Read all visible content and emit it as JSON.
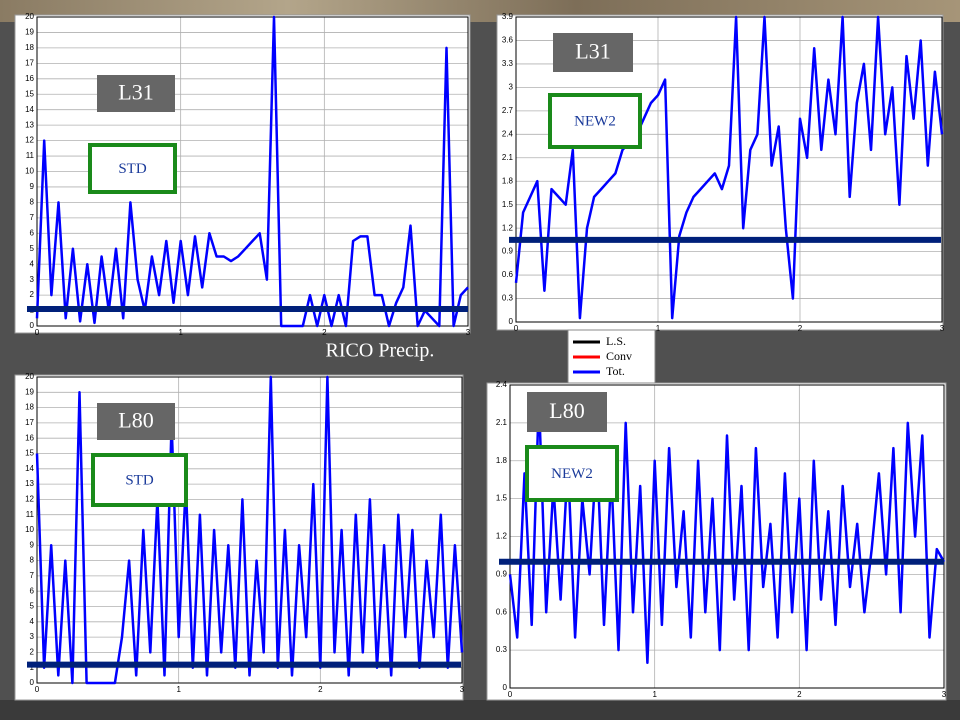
{
  "caption": "RICO Precip.",
  "legend": [
    {
      "name": "L.S.",
      "color": "#000000"
    },
    {
      "name": "Conv",
      "color": "#ff0000"
    },
    {
      "name": "Tot.",
      "color": "#0000ff"
    }
  ],
  "chart_data": [
    {
      "type": "line",
      "labels": [
        "L31",
        "STD"
      ],
      "x": [
        0,
        0.05,
        0.1,
        0.15,
        0.2,
        0.25,
        0.3,
        0.35,
        0.4,
        0.45,
        0.5,
        0.55,
        0.6,
        0.65,
        0.7,
        0.75,
        0.8,
        0.85,
        0.9,
        0.95,
        1,
        1.05,
        1.1,
        1.15,
        1.2,
        1.25,
        1.3,
        1.35,
        1.4,
        1.45,
        1.5,
        1.55,
        1.6,
        1.65,
        1.7,
        1.75,
        1.8,
        1.85,
        1.9,
        1.95,
        2,
        2.05,
        2.1,
        2.15,
        2.2,
        2.25,
        2.3,
        2.35,
        2.4,
        2.45,
        2.5,
        2.55,
        2.6,
        2.65,
        2.7,
        2.75,
        2.8,
        2.85,
        2.9,
        2.95,
        3
      ],
      "xlim": [
        0,
        3
      ],
      "xticks": [
        0,
        1,
        2,
        3
      ],
      "ylim": [
        0,
        20
      ],
      "yticks": [
        0,
        1,
        2,
        3,
        4,
        5,
        6,
        7,
        8,
        9,
        10,
        11,
        12,
        13,
        14,
        15,
        16,
        17,
        18,
        19,
        20
      ],
      "series": [
        {
          "color": "#0000ff",
          "values": [
            0.5,
            12,
            2,
            8,
            0.5,
            5,
            0.3,
            4,
            0.2,
            4.5,
            1,
            5,
            0.5,
            8,
            3,
            1,
            4.5,
            2,
            5.5,
            1.5,
            5.5,
            2,
            5.8,
            2.5,
            6,
            4.5,
            4.5,
            4.2,
            4.5,
            5,
            5.5,
            6,
            3,
            20,
            0,
            0,
            0,
            0,
            2,
            0,
            2,
            0,
            2,
            0,
            5.5,
            5.8,
            5.8,
            2,
            2,
            0,
            1.5,
            2.5,
            6.5,
            0,
            1,
            0.5,
            0,
            18,
            0,
            2,
            2.5
          ]
        }
      ],
      "hline": {
        "value": 1.1,
        "color": "#00207a"
      }
    },
    {
      "type": "line",
      "labels": [
        "L31",
        "NEW2"
      ],
      "x": [
        0,
        0.05,
        0.1,
        0.15,
        0.2,
        0.25,
        0.3,
        0.35,
        0.4,
        0.45,
        0.5,
        0.55,
        0.6,
        0.65,
        0.7,
        0.75,
        0.8,
        0.85,
        0.9,
        0.95,
        1,
        1.05,
        1.1,
        1.15,
        1.2,
        1.25,
        1.3,
        1.35,
        1.4,
        1.45,
        1.5,
        1.55,
        1.6,
        1.65,
        1.7,
        1.75,
        1.8,
        1.85,
        1.9,
        1.95,
        2,
        2.05,
        2.1,
        2.15,
        2.2,
        2.25,
        2.3,
        2.35,
        2.4,
        2.45,
        2.5,
        2.55,
        2.6,
        2.65,
        2.7,
        2.75,
        2.8,
        2.85,
        2.9,
        2.95,
        3
      ],
      "xlim": [
        0,
        3
      ],
      "xticks": [
        0,
        1,
        2,
        3
      ],
      "ylim": [
        0,
        3.9
      ],
      "yticks": [
        0,
        0.3,
        0.6,
        0.9,
        1.2,
        1.5,
        1.8,
        2.1,
        2.4,
        2.7,
        3,
        3.3,
        3.6,
        3.9
      ],
      "series": [
        {
          "color": "#0000ff",
          "values": [
            0.5,
            1.4,
            1.6,
            1.8,
            0.4,
            1.7,
            1.6,
            1.5,
            2.2,
            0.05,
            1.2,
            1.6,
            1.7,
            1.8,
            1.9,
            2.2,
            2.3,
            2.4,
            2.6,
            2.8,
            2.9,
            3.1,
            0.05,
            1.1,
            1.4,
            1.6,
            1.7,
            1.8,
            1.9,
            1.7,
            2,
            3.9,
            1.2,
            2.2,
            2.4,
            3.9,
            2,
            2.5,
            1.2,
            0.3,
            2.6,
            2.1,
            3.5,
            2.2,
            3.1,
            2.4,
            3.9,
            1.6,
            2.8,
            3.3,
            2.2,
            3.9,
            2.4,
            3,
            1.5,
            3.4,
            2.6,
            3.6,
            2,
            3.2,
            2.4
          ]
        }
      ],
      "hline": {
        "value": 1.05,
        "color": "#00207a"
      }
    },
    {
      "type": "line",
      "labels": [
        "L80",
        "STD"
      ],
      "x": [
        0,
        0.05,
        0.1,
        0.15,
        0.2,
        0.25,
        0.3,
        0.35,
        0.4,
        0.45,
        0.5,
        0.55,
        0.6,
        0.65,
        0.7,
        0.75,
        0.8,
        0.85,
        0.9,
        0.95,
        1,
        1.05,
        1.1,
        1.15,
        1.2,
        1.25,
        1.3,
        1.35,
        1.4,
        1.45,
        1.5,
        1.55,
        1.6,
        1.65,
        1.7,
        1.75,
        1.8,
        1.85,
        1.9,
        1.95,
        2,
        2.05,
        2.1,
        2.15,
        2.2,
        2.25,
        2.3,
        2.35,
        2.4,
        2.45,
        2.5,
        2.55,
        2.6,
        2.65,
        2.7,
        2.75,
        2.8,
        2.85,
        2.9,
        2.95,
        3
      ],
      "xlim": [
        0,
        3
      ],
      "xticks": [
        0,
        1,
        2,
        3
      ],
      "ylim": [
        0,
        20
      ],
      "yticks": [
        0,
        1,
        2,
        3,
        4,
        5,
        6,
        7,
        8,
        9,
        10,
        11,
        12,
        13,
        14,
        15,
        16,
        17,
        18,
        19,
        20
      ],
      "series": [
        {
          "color": "#0000ff",
          "values": [
            15,
            1,
            9,
            0.5,
            8,
            0,
            19,
            0,
            0,
            0,
            0,
            0,
            3,
            8,
            0.5,
            10,
            2,
            12,
            0.5,
            17,
            3,
            13,
            1,
            11,
            0.5,
            10,
            2,
            9,
            1,
            12,
            0.5,
            8,
            2,
            20,
            1,
            10,
            0.5,
            9,
            3,
            13,
            1,
            20,
            2,
            10,
            0.5,
            11,
            2,
            12,
            1,
            9,
            0.5,
            11,
            3,
            10,
            1,
            8,
            3,
            11,
            1,
            9,
            2
          ]
        }
      ],
      "hline": {
        "value": 1.2,
        "color": "#00207a"
      }
    },
    {
      "type": "line",
      "labels": [
        "L80",
        "NEW2"
      ],
      "x": [
        0,
        0.05,
        0.1,
        0.15,
        0.2,
        0.25,
        0.3,
        0.35,
        0.4,
        0.45,
        0.5,
        0.55,
        0.6,
        0.65,
        0.7,
        0.75,
        0.8,
        0.85,
        0.9,
        0.95,
        1,
        1.05,
        1.1,
        1.15,
        1.2,
        1.25,
        1.3,
        1.35,
        1.4,
        1.45,
        1.5,
        1.55,
        1.6,
        1.65,
        1.7,
        1.75,
        1.8,
        1.85,
        1.9,
        1.95,
        2,
        2.05,
        2.1,
        2.15,
        2.2,
        2.25,
        2.3,
        2.35,
        2.4,
        2.45,
        2.5,
        2.55,
        2.6,
        2.65,
        2.7,
        2.75,
        2.8,
        2.85,
        2.9,
        2.95,
        3
      ],
      "xlim": [
        0,
        3
      ],
      "xticks": [
        0,
        1,
        2,
        3
      ],
      "ylim": [
        0,
        2.4
      ],
      "yticks": [
        0,
        0.3,
        0.6,
        0.9,
        1.2,
        1.5,
        1.8,
        2.1,
        2.4
      ],
      "series": [
        {
          "color": "#0000ff",
          "values": [
            0.9,
            0.4,
            1.7,
            0.5,
            2.3,
            0.6,
            1.6,
            0.7,
            1.8,
            0.4,
            1.5,
            0.9,
            1.9,
            0.5,
            1.7,
            0.3,
            2.1,
            0.6,
            1.6,
            0.2,
            1.8,
            0.5,
            1.9,
            0.8,
            1.4,
            0.4,
            1.8,
            0.6,
            1.5,
            0.3,
            2,
            0.7,
            1.6,
            0.3,
            1.9,
            0.8,
            1.3,
            0.4,
            1.7,
            0.6,
            1.5,
            0.3,
            1.8,
            0.7,
            1.4,
            0.5,
            1.6,
            0.8,
            1.3,
            0.6,
            1.1,
            1.7,
            0.9,
            1.9,
            0.6,
            2.1,
            1.2,
            2,
            0.4,
            1.1,
            1
          ]
        }
      ],
      "hline": {
        "value": 1.0,
        "color": "#00207a"
      }
    }
  ]
}
